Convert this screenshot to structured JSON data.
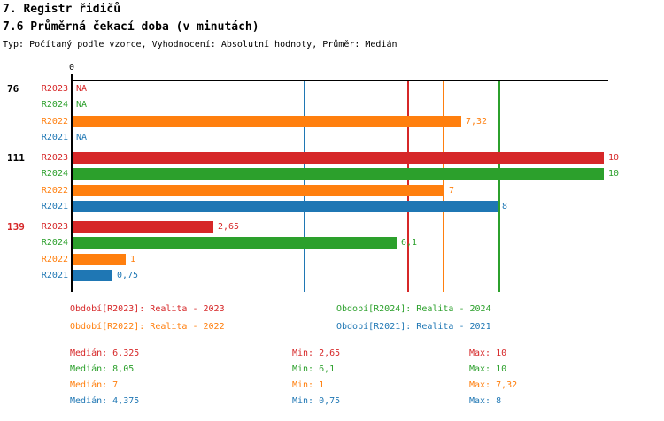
{
  "colors": {
    "R2023": "#d62728",
    "R2024": "#2ca02c",
    "R2022": "#ff7f0e",
    "R2021": "#1f77b4",
    "axis": "#000000",
    "group_label_default": "#000000",
    "group_label_alert": "#d62728"
  },
  "chart_data": {
    "type": "bar",
    "orientation": "horizontal",
    "title": "7. Registr řidičů",
    "subtitle": "7.6 Průměrná čekací doba (v minutách)",
    "meta": "Typ: Počítaný podle vzorce, Vyhodnocení: Absolutní hodnoty, Průměr: Medián",
    "value_axis": {
      "zero_label": "0",
      "min": 0,
      "max": 10.2,
      "grid": false
    },
    "series_order": [
      "R2023",
      "R2024",
      "R2022",
      "R2021"
    ],
    "groups": [
      {
        "label": "76",
        "label_color": "#000000",
        "values": {
          "R2023": null,
          "R2024": null,
          "R2022": 7.32,
          "R2021": null
        },
        "display": {
          "R2023": "NA",
          "R2024": "NA",
          "R2022": "7,32",
          "R2021": "NA"
        }
      },
      {
        "label": "111",
        "label_color": "#000000",
        "values": {
          "R2023": 10,
          "R2024": 10,
          "R2022": 7,
          "R2021": 8
        },
        "display": {
          "R2023": "10",
          "R2024": "10",
          "R2022": "7",
          "R2021": "8"
        }
      },
      {
        "label": "139",
        "label_color": "#d62728",
        "values": {
          "R2023": 2.65,
          "R2024": 6.1,
          "R2022": 1,
          "R2021": 0.75
        },
        "display": {
          "R2023": "2,65",
          "R2024": "6,1",
          "R2022": "1",
          "R2021": "0,75"
        }
      }
    ],
    "median_lines": [
      {
        "series": "R2023",
        "value": 6.325
      },
      {
        "series": "R2024",
        "value": 8.05
      },
      {
        "series": "R2022",
        "value": 7
      },
      {
        "series": "R2021",
        "value": 4.375
      }
    ]
  },
  "legend": {
    "items": [
      {
        "series": "R2023",
        "label": "Období[R2023]: Realita - 2023"
      },
      {
        "series": "R2024",
        "label": "Období[R2024]: Realita - 2024"
      },
      {
        "series": "R2022",
        "label": "Období[R2022]: Realita - 2022"
      },
      {
        "series": "R2021",
        "label": "Období[R2021]: Realita - 2021"
      }
    ]
  },
  "stats": {
    "rows": [
      {
        "series": "R2023",
        "median_label": "Medián: 6,325",
        "min_label": "Min: 2,65",
        "max_label": "Max: 10"
      },
      {
        "series": "R2024",
        "median_label": "Medián: 8,05",
        "min_label": "Min: 6,1",
        "max_label": "Max: 10"
      },
      {
        "series": "R2022",
        "median_label": "Medián: 7",
        "min_label": "Min: 1",
        "max_label": "Max: 7,32"
      },
      {
        "series": "R2021",
        "median_label": "Medián: 4,375",
        "min_label": "Min: 0,75",
        "max_label": "Max: 8"
      }
    ]
  }
}
